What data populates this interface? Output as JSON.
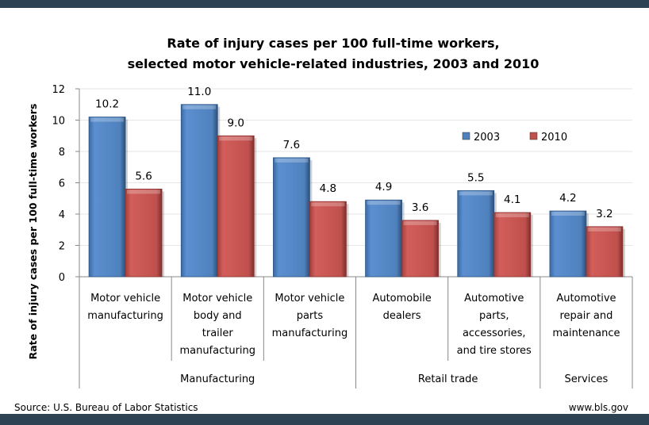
{
  "chart_data": {
    "type": "bar",
    "title": [
      "Rate of injury cases per 100 full-time workers,",
      "selected motor vehicle-related industries, 2003 and 2010"
    ],
    "ylabel": "Rate of injury cases per 100 full-time workers",
    "xlabel": "",
    "ylim": [
      0,
      12
    ],
    "yticks": [
      "0",
      "2",
      "4",
      "6",
      "8",
      "10",
      "12"
    ],
    "grid": true,
    "legend_position": "top-right",
    "categories": [
      [
        "Motor vehicle",
        "manufacturing"
      ],
      [
        "Motor vehicle",
        "body and",
        "trailer",
        "manufacturing"
      ],
      [
        "Motor vehicle",
        "parts",
        "manufacturing"
      ],
      [
        "Automobile",
        "dealers"
      ],
      [
        "Automotive",
        "parts,",
        "accessories,",
        "and tire stores"
      ],
      [
        "Automotive",
        "repair and",
        "maintenance"
      ]
    ],
    "groups": [
      {
        "label": "Manufacturing",
        "span": 3
      },
      {
        "label": "Retail trade",
        "span": 2
      },
      {
        "label": "Services",
        "span": 1
      }
    ],
    "series": [
      {
        "name": "2003",
        "color": "#4f81bd",
        "values": [
          10.2,
          11.0,
          7.6,
          4.9,
          5.5,
          4.2
        ],
        "labels": [
          "10.2",
          "11.0",
          "7.6",
          "4.9",
          "5.5",
          "4.2"
        ]
      },
      {
        "name": "2010",
        "color": "#c0504d",
        "values": [
          5.6,
          9.0,
          4.8,
          3.6,
          4.1,
          3.2
        ],
        "labels": [
          "5.6",
          "9.0",
          "4.8",
          "3.6",
          "4.1",
          "3.2"
        ]
      }
    ]
  },
  "footer": {
    "source": "Source: U.S. Bureau of Labor Statistics",
    "site": "www.bls.gov"
  }
}
